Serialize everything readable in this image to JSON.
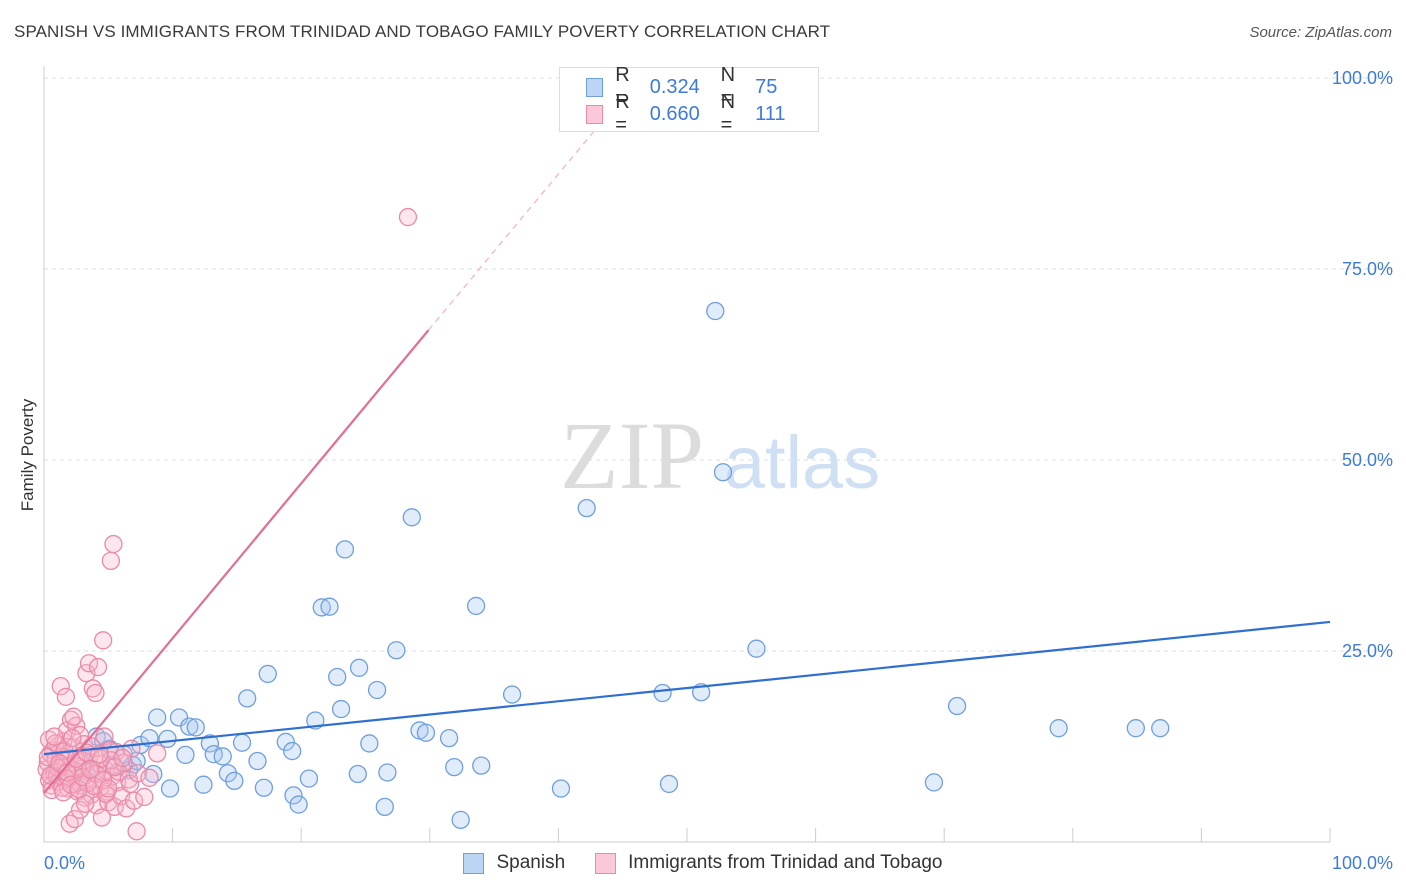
{
  "title": "SPANISH VS IMMIGRANTS FROM TRINIDAD AND TOBAGO FAMILY POVERTY CORRELATION CHART",
  "source": "Source: ZipAtlas.com",
  "watermark": {
    "zip": "ZIP",
    "atlas": "atlas"
  },
  "legend": {
    "rows": [
      {
        "r_label": "R =",
        "r_value": "0.324",
        "n_label": "N =",
        "n_value": "75",
        "color": "#a8c8f0",
        "border": "#6f9fdc"
      },
      {
        "r_label": "R =",
        "r_value": "0.660",
        "n_label": "N =",
        "n_value": "111",
        "color": "#f8b8cc",
        "border": "#e98aa8"
      }
    ]
  },
  "bottom_legend": [
    {
      "label": "Spanish",
      "color": "#bcd5f5",
      "border": "#6f9fdc"
    },
    {
      "label": "Immigrants from Trinidad and Tobago",
      "color": "#fac8d8",
      "border": "#e98aa8"
    }
  ],
  "chart_data": {
    "type": "scatter",
    "title": "SPANISH VS IMMIGRANTS FROM TRINIDAD AND TOBAGO FAMILY POVERTY CORRELATION CHART",
    "xlabel": "",
    "ylabel": "Family Poverty",
    "xlim": [
      0,
      100
    ],
    "ylim": [
      0,
      100
    ],
    "x_tick_labels": [
      "0.0%",
      "100.0%"
    ],
    "y_tick_labels": [
      "25.0%",
      "50.0%",
      "75.0%",
      "100.0%"
    ],
    "y_ticks": [
      25,
      50,
      75,
      100
    ],
    "grid": true,
    "legend_position": "top-center",
    "series": [
      {
        "name": "Spanish",
        "color": "#6f9fdc",
        "fill": "rgba(170,200,240,0.35)",
        "trend": {
          "x": [
            0,
            100
          ],
          "y": [
            11.5,
            28.8
          ],
          "color": "#2f6fcf"
        },
        "points": [
          [
            1.0,
            9.2
          ],
          [
            2.8,
            10.7
          ],
          [
            3.3,
            9.2
          ],
          [
            4.1,
            13.8
          ],
          [
            4.6,
            13.2
          ],
          [
            5.4,
            10.1
          ],
          [
            6.2,
            11.5
          ],
          [
            6.9,
            10.1
          ],
          [
            7.5,
            12.7
          ],
          [
            8.2,
            13.6
          ],
          [
            8.8,
            16.3
          ],
          [
            9.6,
            13.5
          ],
          [
            9.8,
            7.0
          ],
          [
            10.5,
            16.3
          ],
          [
            11.0,
            11.4
          ],
          [
            11.3,
            15.1
          ],
          [
            11.8,
            15.0
          ],
          [
            12.4,
            7.5
          ],
          [
            12.9,
            12.9
          ],
          [
            13.2,
            11.5
          ],
          [
            13.9,
            11.2
          ],
          [
            14.3,
            9.0
          ],
          [
            14.8,
            8.0
          ],
          [
            15.4,
            13.0
          ],
          [
            15.8,
            18.8
          ],
          [
            16.6,
            10.6
          ],
          [
            17.1,
            7.1
          ],
          [
            17.4,
            22.0
          ],
          [
            18.8,
            13.1
          ],
          [
            19.3,
            11.9
          ],
          [
            19.4,
            6.1
          ],
          [
            19.8,
            4.9
          ],
          [
            20.6,
            8.3
          ],
          [
            21.1,
            15.9
          ],
          [
            21.6,
            30.7
          ],
          [
            22.2,
            30.8
          ],
          [
            22.8,
            21.6
          ],
          [
            23.1,
            17.4
          ],
          [
            23.4,
            38.3
          ],
          [
            24.4,
            8.9
          ],
          [
            24.5,
            22.8
          ],
          [
            25.3,
            12.9
          ],
          [
            25.9,
            19.9
          ],
          [
            26.5,
            4.6
          ],
          [
            26.7,
            9.1
          ],
          [
            27.4,
            25.1
          ],
          [
            28.6,
            42.5
          ],
          [
            29.2,
            14.6
          ],
          [
            29.7,
            14.3
          ],
          [
            31.5,
            13.6
          ],
          [
            31.9,
            9.8
          ],
          [
            32.4,
            2.9
          ],
          [
            33.6,
            30.9
          ],
          [
            34.0,
            10.0
          ],
          [
            36.4,
            19.3
          ],
          [
            40.2,
            7.0
          ],
          [
            42.2,
            43.7
          ],
          [
            48.1,
            19.5
          ],
          [
            48.6,
            7.6
          ],
          [
            51.1,
            19.6
          ],
          [
            52.2,
            69.5
          ],
          [
            52.8,
            48.4
          ],
          [
            55.4,
            25.3
          ],
          [
            69.2,
            7.8
          ],
          [
            71.0,
            17.8
          ],
          [
            78.9,
            14.9
          ],
          [
            84.9,
            14.9
          ],
          [
            86.8,
            14.9
          ],
          [
            1.5,
            8.1
          ],
          [
            2.3,
            7.6
          ],
          [
            3.8,
            9.5
          ],
          [
            5.1,
            12.2
          ],
          [
            6.6,
            9.4
          ],
          [
            7.2,
            10.6
          ],
          [
            8.5,
            8.9
          ]
        ]
      },
      {
        "name": "Immigrants from Trinidad and Tobago",
        "color": "#e98aa8",
        "fill": "rgba(248,184,204,0.35)",
        "trend": {
          "x": [
            0,
            29.9
          ],
          "y": [
            6.4,
            67.0
          ],
          "dash_x": [
            29.9,
            43.0
          ],
          "dash_y": [
            67.0,
            93.5
          ],
          "color": "#e26d95"
        },
        "points": [
          [
            0.2,
            9.5
          ],
          [
            0.3,
            10.4
          ],
          [
            0.4,
            8.1
          ],
          [
            0.5,
            11.6
          ],
          [
            0.6,
            7.4
          ],
          [
            0.7,
            12.0
          ],
          [
            0.8,
            9.0
          ],
          [
            0.9,
            10.8
          ],
          [
            1.0,
            8.6
          ],
          [
            1.1,
            12.6
          ],
          [
            1.2,
            7.9
          ],
          [
            1.3,
            11.2
          ],
          [
            1.4,
            9.8
          ],
          [
            1.5,
            13.2
          ],
          [
            1.6,
            8.4
          ],
          [
            1.7,
            10.0
          ],
          [
            1.8,
            14.6
          ],
          [
            1.9,
            7.0
          ],
          [
            2.0,
            11.0
          ],
          [
            2.1,
            16.0
          ],
          [
            2.2,
            9.3
          ],
          [
            2.3,
            12.4
          ],
          [
            2.4,
            8.8
          ],
          [
            2.5,
            15.2
          ],
          [
            2.6,
            6.6
          ],
          [
            2.7,
            10.6
          ],
          [
            2.8,
            14.0
          ],
          [
            2.9,
            7.4
          ],
          [
            3.0,
            9.6
          ],
          [
            3.1,
            12.8
          ],
          [
            3.2,
            5.8
          ],
          [
            3.3,
            22.1
          ],
          [
            3.4,
            8.0
          ],
          [
            3.5,
            23.4
          ],
          [
            3.6,
            11.4
          ],
          [
            3.7,
            6.2
          ],
          [
            3.8,
            20.1
          ],
          [
            3.9,
            9.0
          ],
          [
            4.0,
            19.5
          ],
          [
            4.1,
            4.8
          ],
          [
            4.2,
            22.9
          ],
          [
            4.3,
            10.2
          ],
          [
            4.4,
            7.2
          ],
          [
            4.5,
            3.2
          ],
          [
            4.6,
            26.4
          ],
          [
            4.7,
            13.8
          ],
          [
            4.8,
            9.4
          ],
          [
            4.9,
            6.6
          ],
          [
            5.0,
            5.2
          ],
          [
            5.1,
            12.0
          ],
          [
            5.2,
            36.8
          ],
          [
            5.3,
            8.6
          ],
          [
            5.4,
            39.0
          ],
          [
            5.5,
            4.6
          ],
          [
            5.6,
            11.8
          ],
          [
            5.7,
            7.8
          ],
          [
            5.8,
            9.2
          ],
          [
            6.0,
            6.0
          ],
          [
            6.2,
            10.4
          ],
          [
            6.4,
            4.4
          ],
          [
            6.6,
            8.2
          ],
          [
            6.8,
            12.2
          ],
          [
            7.0,
            5.4
          ],
          [
            7.2,
            1.4
          ],
          [
            1.3,
            20.4
          ],
          [
            1.7,
            19.0
          ],
          [
            2.0,
            2.4
          ],
          [
            2.4,
            3.0
          ],
          [
            2.8,
            4.2
          ],
          [
            3.2,
            5.0
          ],
          [
            0.4,
            13.4
          ],
          [
            0.6,
            6.8
          ],
          [
            0.9,
            12.9
          ],
          [
            1.1,
            9.7
          ],
          [
            1.4,
            7.1
          ],
          [
            1.6,
            11.9
          ],
          [
            1.9,
            8.3
          ],
          [
            2.2,
            13.6
          ],
          [
            2.6,
            9.9
          ],
          [
            2.9,
            11.3
          ],
          [
            3.4,
            7.7
          ],
          [
            3.7,
            12.5
          ],
          [
            4.1,
            8.9
          ],
          [
            4.4,
            10.9
          ],
          [
            4.8,
            6.3
          ],
          [
            5.2,
            10.7
          ],
          [
            0.3,
            11.1
          ],
          [
            0.5,
            8.7
          ],
          [
            0.8,
            13.8
          ],
          [
            1.2,
            10.3
          ],
          [
            1.5,
            6.5
          ],
          [
            1.8,
            9.1
          ],
          [
            2.1,
            7.5
          ],
          [
            2.5,
            10.9
          ],
          [
            2.7,
            6.9
          ],
          [
            3.0,
            8.5
          ],
          [
            3.3,
            11.7
          ],
          [
            3.6,
            9.5
          ],
          [
            3.9,
            7.3
          ],
          [
            4.3,
            11.5
          ],
          [
            4.6,
            8.1
          ],
          [
            5.0,
            7.0
          ],
          [
            5.5,
            9.8
          ],
          [
            6.1,
            11.0
          ],
          [
            6.7,
            7.6
          ],
          [
            7.3,
            9.0
          ],
          [
            7.8,
            5.9
          ],
          [
            8.2,
            8.4
          ],
          [
            8.8,
            11.6
          ],
          [
            28.3,
            81.8
          ],
          [
            2.3,
            16.4
          ]
        ]
      }
    ]
  }
}
